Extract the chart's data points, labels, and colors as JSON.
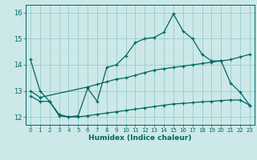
{
  "xlabel": "Humidex (Indice chaleur)",
  "background_color": "#cce8e8",
  "grid_color": "#99cccc",
  "line_color": "#006666",
  "spine_color": "#006666",
  "xlim": [
    -0.5,
    23.5
  ],
  "ylim": [
    11.7,
    16.3
  ],
  "xticks": [
    0,
    1,
    2,
    3,
    4,
    5,
    6,
    7,
    8,
    9,
    10,
    11,
    12,
    13,
    14,
    15,
    16,
    17,
    18,
    19,
    20,
    21,
    22,
    23
  ],
  "yticks": [
    12,
    13,
    14,
    15,
    16
  ],
  "line1_x": [
    0,
    1,
    2,
    3,
    4,
    5,
    6,
    7,
    8,
    9,
    10,
    11,
    12,
    13,
    14,
    15,
    16,
    17,
    18,
    19,
    20,
    21,
    22,
    23
  ],
  "line1_y": [
    14.2,
    13.0,
    12.6,
    12.1,
    12.0,
    12.05,
    13.1,
    12.6,
    13.9,
    14.0,
    14.35,
    14.85,
    15.0,
    15.05,
    15.25,
    15.95,
    15.3,
    15.0,
    14.4,
    14.15,
    14.15,
    13.3,
    12.95,
    12.45
  ],
  "line2_x": [
    0,
    1,
    6,
    7,
    8,
    9,
    10,
    11,
    12,
    13,
    14,
    15,
    16,
    17,
    18,
    19,
    20,
    21,
    22,
    23
  ],
  "line2_y": [
    13.0,
    12.75,
    13.15,
    13.25,
    13.35,
    13.45,
    13.5,
    13.6,
    13.7,
    13.8,
    13.85,
    13.9,
    13.95,
    14.0,
    14.05,
    14.1,
    14.15,
    14.2,
    14.3,
    14.4
  ],
  "line3_x": [
    0,
    1,
    2,
    3,
    4,
    5,
    6,
    7,
    8,
    9,
    10,
    11,
    12,
    13,
    14,
    15,
    16,
    17,
    18,
    19,
    20,
    21,
    22,
    23
  ],
  "line3_y": [
    12.8,
    12.6,
    12.6,
    12.05,
    12.0,
    12.0,
    12.05,
    12.1,
    12.15,
    12.2,
    12.25,
    12.3,
    12.35,
    12.4,
    12.45,
    12.5,
    12.52,
    12.55,
    12.58,
    12.6,
    12.63,
    12.65,
    12.65,
    12.45
  ]
}
